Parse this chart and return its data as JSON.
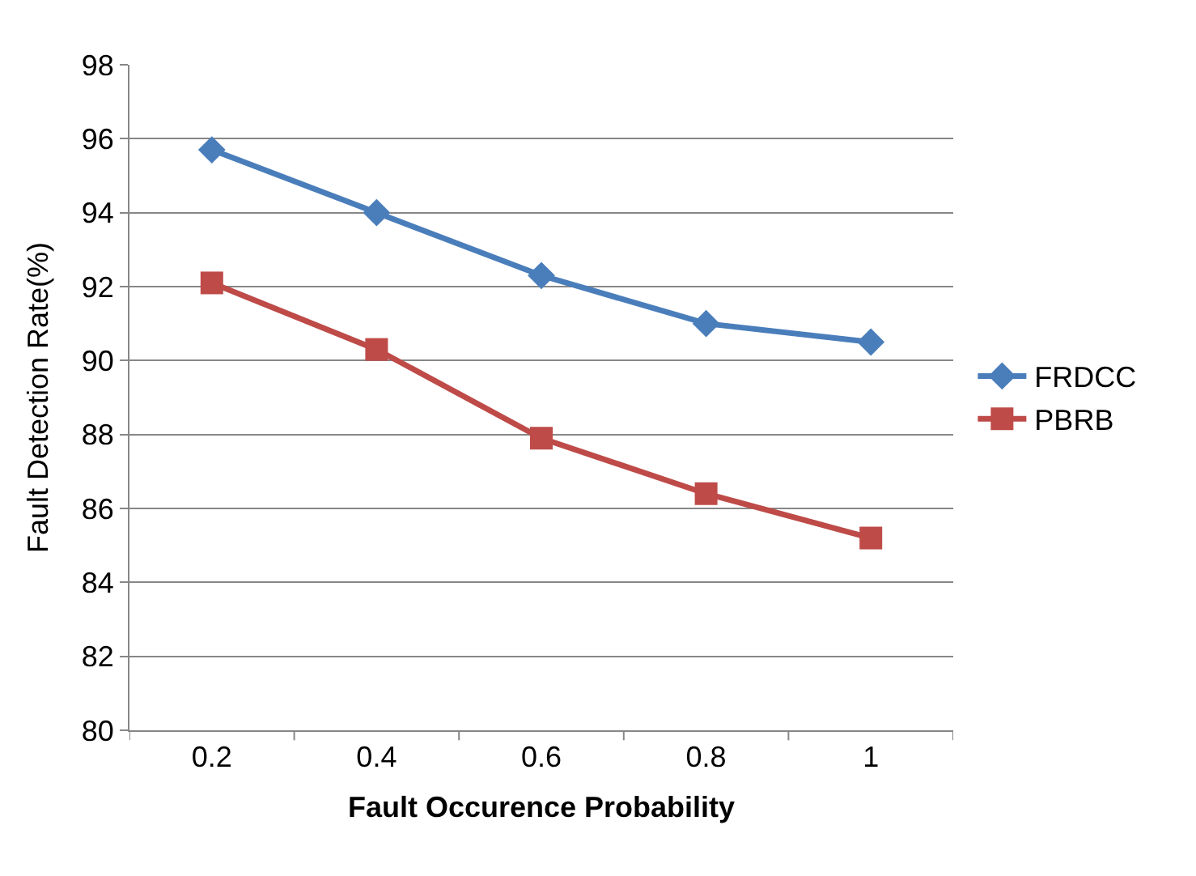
{
  "chart_data": {
    "type": "line",
    "xlabel": "Fault Occurence Probability",
    "ylabel": "Fault Detection Rate(%)",
    "categories": [
      "0.2",
      "0.4",
      "0.6",
      "0.8",
      "1"
    ],
    "series": [
      {
        "name": "FRDCC",
        "color": "#4a7ebb",
        "marker": "diamond",
        "values": [
          95.7,
          94.0,
          92.3,
          91.0,
          90.5
        ]
      },
      {
        "name": "PBRB",
        "color": "#be4b48",
        "marker": "square",
        "values": [
          92.1,
          90.3,
          87.9,
          86.4,
          85.2
        ]
      }
    ],
    "ylim": [
      80,
      98
    ],
    "yticks": [
      80,
      82,
      84,
      86,
      88,
      90,
      92,
      94,
      96,
      98
    ],
    "grid": "y",
    "legend": "right",
    "line_style": "solid"
  }
}
